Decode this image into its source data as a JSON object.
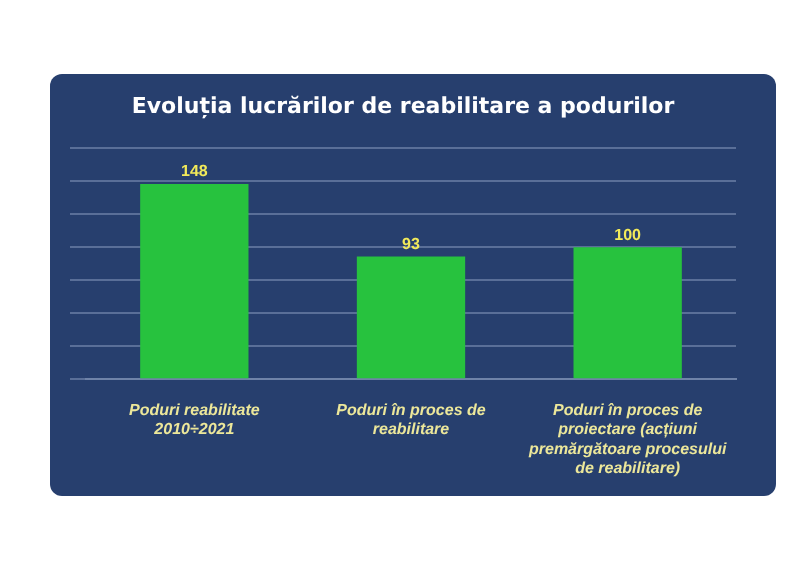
{
  "chart_data": {
    "type": "bar",
    "title": "Evoluția lucrărilor de reabilitare a podurilor",
    "categories": [
      "Poduri reabilitate 2010÷2021",
      "Poduri în proces de reabilitare",
      "Poduri în proces de proiectare (acțiuni premărgătoare procesului de reabilitare)"
    ],
    "values": [
      148,
      93,
      100
    ],
    "color": "#27c23e",
    "ylim": [
      0,
      175
    ],
    "yticks": [
      0,
      25,
      50,
      75,
      100,
      125,
      150,
      175
    ],
    "grid": "y",
    "tick_labels": "x",
    "data_labels": true
  }
}
